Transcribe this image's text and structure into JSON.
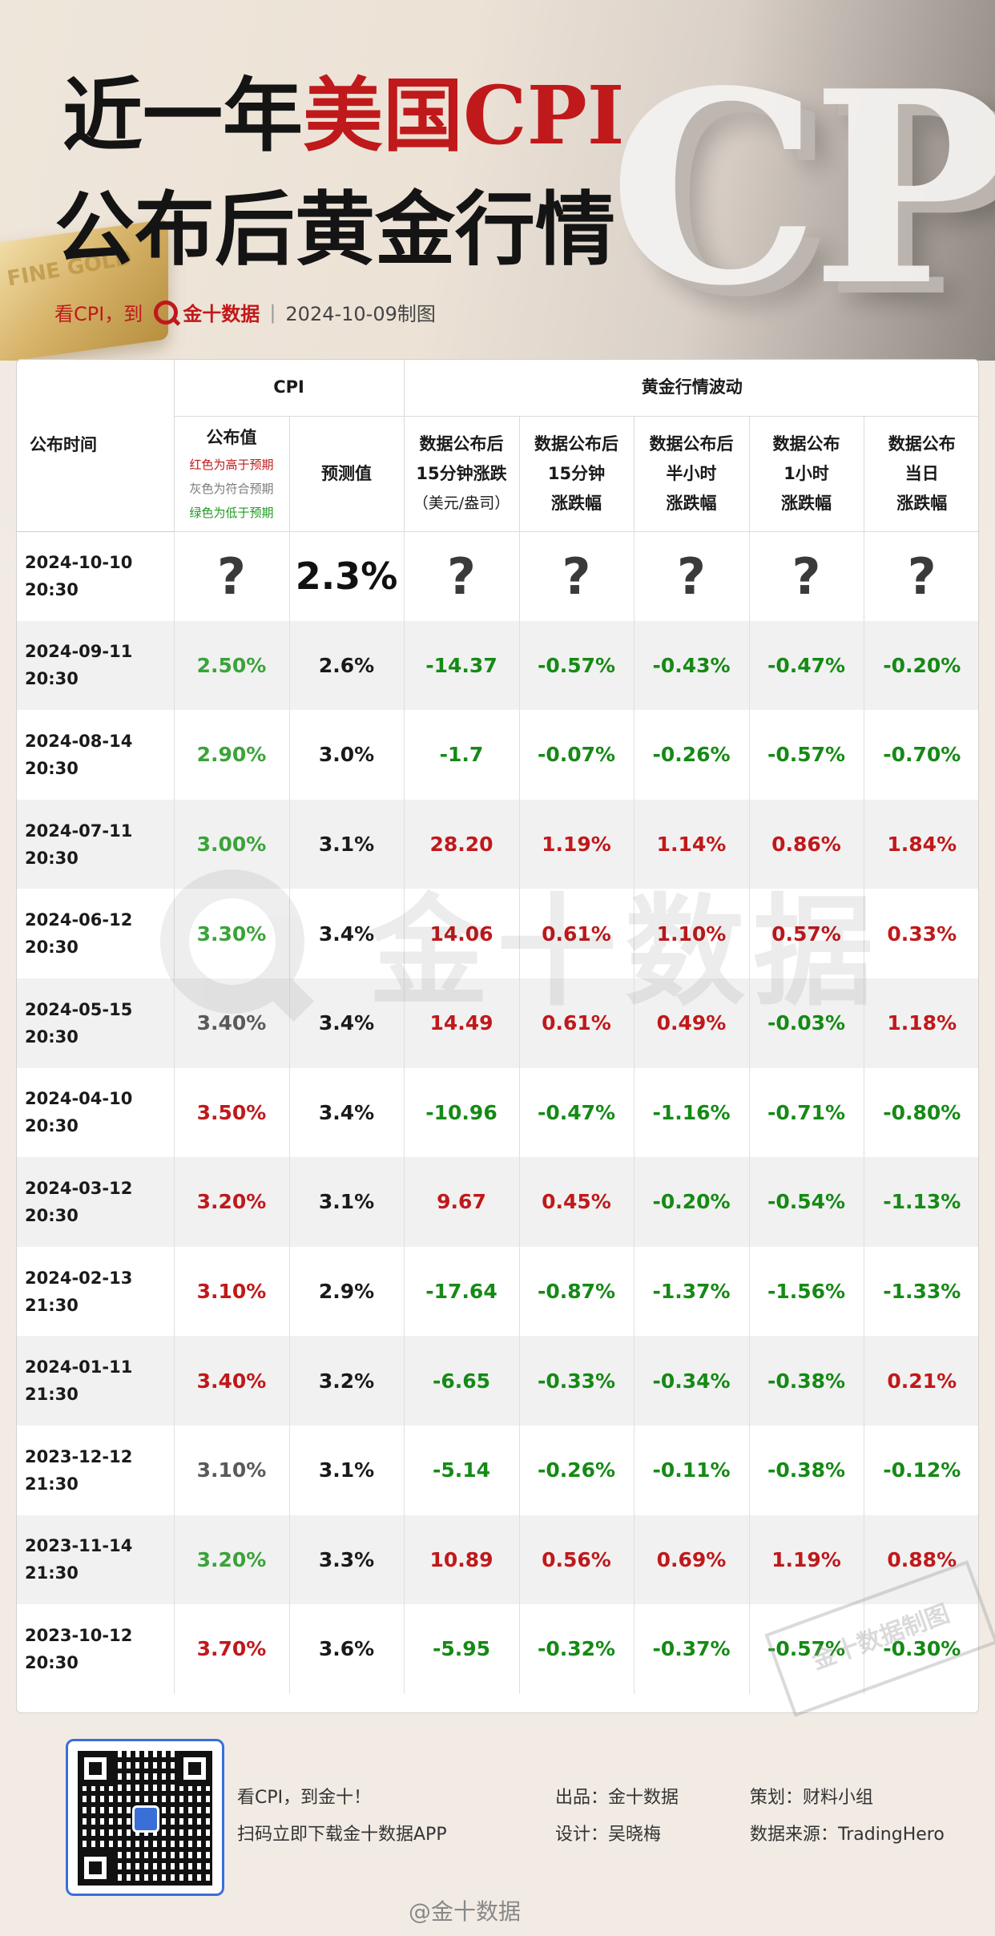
{
  "header": {
    "title_line1_part1": "近一年",
    "title_line1_part2": "美国CPI",
    "title_line2": "公布后黄金行情",
    "subtitle_prefix": "看CPI，到",
    "brand": "金十数据",
    "date_made": "2024-10-09制图",
    "deco_text": "CPI",
    "bar_text": "FINE GOLD"
  },
  "table": {
    "headers": {
      "time": "公布时间",
      "cpi_group": "CPI",
      "gold_group": "黄金行情波动",
      "actual": "公布值",
      "legend_red": "红色为高于预期",
      "legend_gray": "灰色为符合预期",
      "legend_green": "绿色为低于预期",
      "forecast": "预测值",
      "c1": [
        "数据公布后",
        "15分钟涨跌",
        "（美元/盎司）"
      ],
      "c2": [
        "数据公布后",
        "15分钟",
        "涨跌幅"
      ],
      "c3": [
        "数据公布后",
        "半小时",
        "涨跌幅"
      ],
      "c4": [
        "数据公布",
        "1小时",
        "涨跌幅"
      ],
      "c5": [
        "数据公布",
        "当日",
        "涨跌幅"
      ]
    },
    "rows": [
      {
        "date": "2024-10-10",
        "time": "20:30",
        "actual": "?",
        "actual_color": "q",
        "forecast": "2.3%",
        "pts": "?",
        "pct15": "?",
        "pct30": "?",
        "pct60": "?",
        "day": "?",
        "colors": [
          "q",
          "q",
          "q",
          "q",
          "q"
        ]
      },
      {
        "date": "2024-09-11",
        "time": "20:30",
        "actual": "2.50%",
        "actual_color": "lgreen",
        "forecast": "2.6%",
        "pts": "-14.37",
        "pct15": "-0.57%",
        "pct30": "-0.43%",
        "pct60": "-0.47%",
        "day": "-0.20%",
        "colors": [
          "green",
          "green",
          "green",
          "green",
          "green"
        ]
      },
      {
        "date": "2024-08-14",
        "time": "20:30",
        "actual": "2.90%",
        "actual_color": "lgreen",
        "forecast": "3.0%",
        "pts": "-1.7",
        "pct15": "-0.07%",
        "pct30": "-0.26%",
        "pct60": "-0.57%",
        "day": "-0.70%",
        "colors": [
          "green",
          "green",
          "green",
          "green",
          "green"
        ]
      },
      {
        "date": "2024-07-11",
        "time": "20:30",
        "actual": "3.00%",
        "actual_color": "lgreen",
        "forecast": "3.1%",
        "pts": "28.20",
        "pct15": "1.19%",
        "pct30": "1.14%",
        "pct60": "0.86%",
        "day": "1.84%",
        "colors": [
          "red",
          "red",
          "red",
          "red",
          "red"
        ]
      },
      {
        "date": "2024-06-12",
        "time": "20:30",
        "actual": "3.30%",
        "actual_color": "lgreen",
        "forecast": "3.4%",
        "pts": "14.06",
        "pct15": "0.61%",
        "pct30": "1.10%",
        "pct60": "0.57%",
        "day": "0.33%",
        "colors": [
          "red",
          "red",
          "red",
          "red",
          "red"
        ]
      },
      {
        "date": "2024-05-15",
        "time": "20:30",
        "actual": "3.40%",
        "actual_color": "gray",
        "forecast": "3.4%",
        "pts": "14.49",
        "pct15": "0.61%",
        "pct30": "0.49%",
        "pct60": "-0.03%",
        "day": "1.18%",
        "colors": [
          "red",
          "red",
          "red",
          "green",
          "red"
        ]
      },
      {
        "date": "2024-04-10",
        "time": "20:30",
        "actual": "3.50%",
        "actual_color": "red",
        "forecast": "3.4%",
        "pts": "-10.96",
        "pct15": "-0.47%",
        "pct30": "-1.16%",
        "pct60": "-0.71%",
        "day": "-0.80%",
        "colors": [
          "green",
          "green",
          "green",
          "green",
          "green"
        ]
      },
      {
        "date": "2024-03-12",
        "time": "20:30",
        "actual": "3.20%",
        "actual_color": "red",
        "forecast": "3.1%",
        "pts": "9.67",
        "pct15": "0.45%",
        "pct30": "-0.20%",
        "pct60": "-0.54%",
        "day": "-1.13%",
        "colors": [
          "red",
          "red",
          "green",
          "green",
          "green"
        ]
      },
      {
        "date": "2024-02-13",
        "time": "21:30",
        "actual": "3.10%",
        "actual_color": "red",
        "forecast": "2.9%",
        "pts": "-17.64",
        "pct15": "-0.87%",
        "pct30": "-1.37%",
        "pct60": "-1.56%",
        "day": "-1.33%",
        "colors": [
          "green",
          "green",
          "green",
          "green",
          "green"
        ]
      },
      {
        "date": "2024-01-11",
        "time": "21:30",
        "actual": "3.40%",
        "actual_color": "red",
        "forecast": "3.2%",
        "pts": "-6.65",
        "pct15": "-0.33%",
        "pct30": "-0.34%",
        "pct60": "-0.38%",
        "day": "0.21%",
        "colors": [
          "green",
          "green",
          "green",
          "green",
          "red"
        ]
      },
      {
        "date": "2023-12-12",
        "time": "21:30",
        "actual": "3.10%",
        "actual_color": "gray",
        "forecast": "3.1%",
        "pts": "-5.14",
        "pct15": "-0.26%",
        "pct30": "-0.11%",
        "pct60": "-0.38%",
        "day": "-0.12%",
        "colors": [
          "green",
          "green",
          "green",
          "green",
          "green"
        ]
      },
      {
        "date": "2023-11-14",
        "time": "21:30",
        "actual": "3.20%",
        "actual_color": "lgreen",
        "forecast": "3.3%",
        "pts": "10.89",
        "pct15": "0.56%",
        "pct30": "0.69%",
        "pct60": "1.19%",
        "day": "0.88%",
        "colors": [
          "red",
          "red",
          "red",
          "red",
          "red"
        ]
      },
      {
        "date": "2023-10-12",
        "time": "20:30",
        "actual": "3.70%",
        "actual_color": "red",
        "forecast": "3.6%",
        "pts": "-5.95",
        "pct15": "-0.32%",
        "pct30": "-0.37%",
        "pct60": "-0.57%",
        "day": "-0.30%",
        "colors": [
          "green",
          "green",
          "green",
          "green",
          "green"
        ]
      }
    ]
  },
  "watermark": {
    "text": "金十数据"
  },
  "stamp": {
    "text": "金十数据制图"
  },
  "footer": {
    "slogan": "看CPI，到金十！",
    "scan": "扫码立即下载金十数据APP",
    "producer": "出品：金十数据",
    "designer": "设计：吴晓梅",
    "planner": "策划：财料小组",
    "source": "数据来源：TradingHero",
    "weibo": "@金十数据"
  },
  "colors": {
    "red": "#c0191b",
    "green": "#158a15",
    "light_green": "#3aa33a",
    "gray": "#5a5a5a",
    "qr_border": "#3a6fd8"
  }
}
